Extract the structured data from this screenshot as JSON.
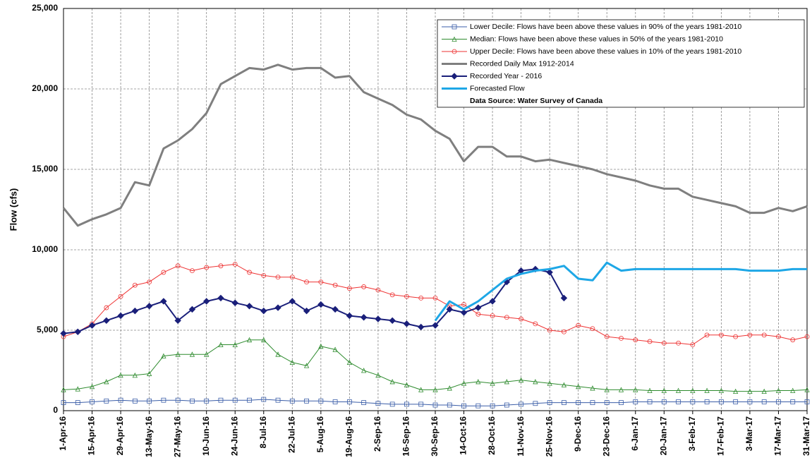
{
  "chart_data": {
    "type": "line",
    "y_label": "Flow (cfs)",
    "categories": [
      "1-Apr-16",
      null,
      "15-Apr-16",
      null,
      "29-Apr-16",
      null,
      "13-May-16",
      null,
      "27-May-16",
      null,
      "10-Jun-16",
      null,
      "24-Jun-16",
      null,
      "8-Jul-16",
      null,
      "22-Jul-16",
      null,
      "5-Aug-16",
      null,
      "19-Aug-16",
      null,
      "2-Sep-16",
      null,
      "16-Sep-16",
      null,
      "30-Sep-16",
      null,
      "14-Oct-16",
      null,
      "28-Oct-16",
      null,
      "11-Nov-16",
      null,
      "25-Nov-16",
      null,
      "9-Dec-16",
      null,
      "23-Dec-16",
      null,
      "6-Jan-17",
      null,
      "20-Jan-17",
      null,
      "3-Feb-17",
      null,
      "17-Feb-17",
      null,
      "3-Mar-17",
      null,
      "17-Mar-17",
      null,
      "31-Mar-17"
    ],
    "ylim": [
      0,
      25000
    ],
    "yticks": [
      0,
      {
        "value": 5000,
        "label": "5,000"
      },
      {
        "value": 10000,
        "label": "10,000"
      },
      {
        "value": 15000,
        "label": "15,000"
      },
      {
        "value": 20000,
        "label": "20,000"
      },
      {
        "value": 25000,
        "label": "25,000"
      }
    ],
    "grid": true,
    "legend_position": "top-right",
    "legend_note": "Data Source: Water Survey of Canada",
    "series": [
      {
        "name": "Lower Decile: Flows have been above these values in 90% of the years 1981-2010",
        "color": "#3b5ea8",
        "marker": "square",
        "width": 1,
        "values": [
          500,
          500,
          550,
          600,
          650,
          600,
          600,
          650,
          650,
          600,
          600,
          650,
          650,
          650,
          700,
          650,
          600,
          600,
          600,
          550,
          550,
          500,
          450,
          400,
          400,
          400,
          350,
          350,
          300,
          300,
          300,
          350,
          400,
          450,
          500,
          500,
          500,
          500,
          500,
          500,
          550,
          550,
          550,
          550,
          550,
          550,
          550,
          550,
          550,
          550,
          550,
          550,
          550
        ]
      },
      {
        "name": "Median: Flows have been above these values in 50% of the years 1981-2010",
        "color": "#2e8b2e",
        "marker": "triangle",
        "width": 1,
        "values": [
          1300,
          1350,
          1500,
          1800,
          2200,
          2200,
          2300,
          3400,
          3500,
          3500,
          3500,
          4100,
          4100,
          4400,
          4400,
          3500,
          3000,
          2800,
          4000,
          3800,
          3000,
          2500,
          2200,
          1800,
          1600,
          1300,
          1300,
          1400,
          1700,
          1800,
          1700,
          1800,
          1900,
          1800,
          1700,
          1600,
          1500,
          1400,
          1300,
          1300,
          1300,
          1250,
          1250,
          1250,
          1250,
          1250,
          1250,
          1200,
          1200,
          1200,
          1250,
          1250,
          1300
        ]
      },
      {
        "name": "Upper Decile: Flows have been above these values in 10% of the years 1981-2010",
        "color": "#ee3333",
        "marker": "circle",
        "width": 1,
        "values": [
          4600,
          4900,
          5400,
          6400,
          7100,
          7800,
          8000,
          8600,
          9000,
          8700,
          8900,
          9000,
          9100,
          8600,
          8400,
          8300,
          8300,
          8000,
          8000,
          7800,
          7600,
          7700,
          7500,
          7200,
          7100,
          7000,
          7000,
          6500,
          6600,
          6000,
          5900,
          5800,
          5700,
          5400,
          5000,
          4900,
          5300,
          5100,
          4600,
          4500,
          4400,
          4300,
          4200,
          4200,
          4100,
          4700,
          4700,
          4600,
          4700,
          4700,
          4600,
          4400,
          4600
        ]
      },
      {
        "name": "Recorded Daily Max 1912-2014",
        "color": "#7f7f7f",
        "marker": "none",
        "width": 3,
        "values": [
          12600,
          11500,
          11900,
          12200,
          12600,
          14200,
          14000,
          16300,
          16800,
          17500,
          18500,
          20300,
          20800,
          21300,
          21200,
          21500,
          21200,
          21300,
          21300,
          20700,
          20800,
          19800,
          19400,
          19000,
          18400,
          18100,
          17400,
          16900,
          15500,
          16400,
          16400,
          15800,
          15800,
          15500,
          15600,
          15400,
          15200,
          15000,
          14700,
          14500,
          14300,
          14000,
          13800,
          13800,
          13300,
          13100,
          12900,
          12700,
          12300,
          12300,
          12600,
          12400,
          12700
        ]
      },
      {
        "name": "Recorded Year - 2016",
        "color": "#1a1f7a",
        "marker": "diamond",
        "width": 2,
        "values": [
          4800,
          4900,
          5300,
          5600,
          5900,
          6200,
          6500,
          6800,
          5600,
          6300,
          6800,
          7000,
          6700,
          6500,
          6200,
          6400,
          6800,
          6200,
          6600,
          6300,
          5900,
          5800,
          5700,
          5600,
          5400,
          5200,
          5300,
          6300,
          6100,
          6400,
          6800,
          8000,
          8700,
          8800,
          8600,
          7000,
          null,
          null,
          null,
          null,
          null,
          null,
          null,
          null,
          null,
          null,
          null,
          null,
          null,
          null,
          null,
          null,
          null
        ]
      },
      {
        "name": "Forecasted Flow",
        "color": "#1ea7e6",
        "marker": "none",
        "width": 3,
        "values": [
          null,
          null,
          null,
          null,
          null,
          null,
          null,
          null,
          null,
          null,
          null,
          null,
          null,
          null,
          null,
          null,
          null,
          null,
          null,
          null,
          null,
          null,
          null,
          null,
          null,
          null,
          5600,
          6800,
          6300,
          6800,
          7500,
          8200,
          8500,
          8700,
          8800,
          9000,
          8200,
          8100,
          9200,
          8700,
          8800,
          8800,
          8800,
          8800,
          8800,
          8800,
          8800,
          8800,
          8700,
          8700,
          8700,
          8800,
          8800
        ]
      }
    ]
  }
}
